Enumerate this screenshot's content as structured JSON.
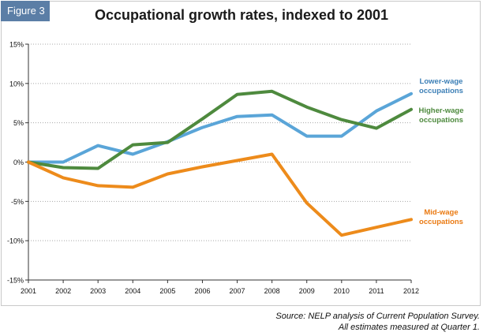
{
  "figure_label": "Figure 3",
  "source_lines": [
    "Source: NELP analysis of Current Population Survey.",
    "All estimates measured at Quarter 1."
  ],
  "colors": {
    "lower": "#5aa5d8",
    "higher": "#4e8a3e",
    "mid": "#ed8b1b",
    "lower_label": "#3c7fb6",
    "higher_label": "#4e8a3e",
    "mid_label": "#ea7a12"
  },
  "chart_data": {
    "type": "line",
    "title": "Occupational growth rates, indexed to 2001",
    "xlabel": "",
    "ylabel": "",
    "x": [
      "2001",
      "2002",
      "2003",
      "2004",
      "2005",
      "2006",
      "2007",
      "2008",
      "2009",
      "2010",
      "2011",
      "2012"
    ],
    "ylim": [
      -15,
      15
    ],
    "yticks": [
      -15,
      -10,
      -5,
      0,
      5,
      10,
      15
    ],
    "ytick_labels": [
      "-15%",
      "-10%",
      "-5%",
      "0%",
      "5%",
      "10%",
      "15%"
    ],
    "grid": true,
    "series": [
      {
        "key": "lower",
        "name": "Lower-wage occupations",
        "label_lines": [
          "Lower-wage",
          "occupations"
        ],
        "values": [
          0,
          0,
          2.1,
          1.0,
          2.6,
          4.4,
          5.8,
          6.0,
          3.3,
          3.3,
          6.5,
          8.7
        ]
      },
      {
        "key": "higher",
        "name": "Higher-wage occupations",
        "label_lines": [
          "Higher-wage",
          "occupations"
        ],
        "values": [
          0,
          -0.7,
          -0.8,
          2.2,
          2.5,
          5.5,
          8.6,
          9.0,
          7.0,
          5.4,
          4.3,
          6.7
        ]
      },
      {
        "key": "mid",
        "name": "Mid-wage occupations",
        "label_lines": [
          "Mid-wage",
          "occupations"
        ],
        "values": [
          0,
          -2.0,
          -3.0,
          -3.2,
          -1.5,
          -0.6,
          0.2,
          1.0,
          -5.2,
          -9.3,
          -8.3,
          -7.3
        ]
      }
    ]
  }
}
